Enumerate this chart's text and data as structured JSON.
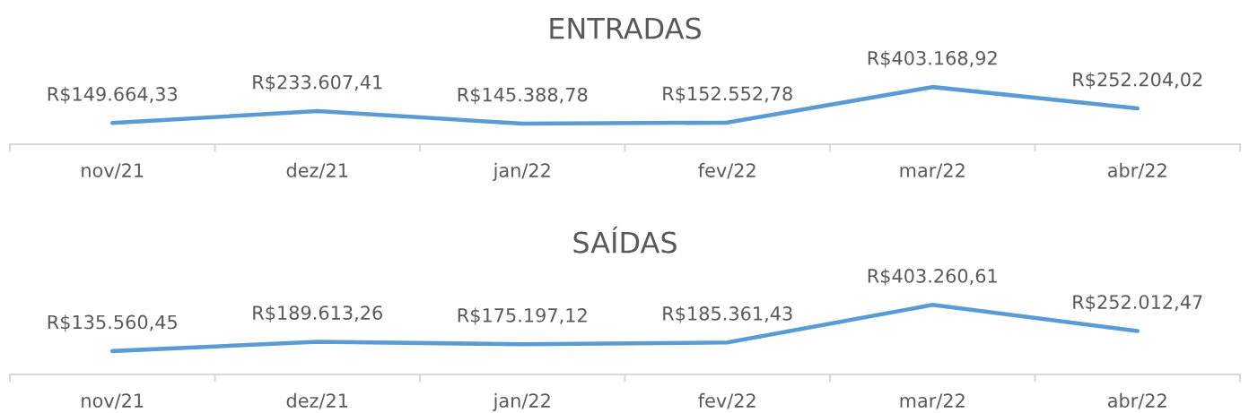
{
  "chart_data": [
    {
      "type": "line",
      "title": "ENTRADAS",
      "categories": [
        "nov/21",
        "dez/21",
        "jan/22",
        "fev/22",
        "mar/22",
        "abr/22"
      ],
      "tick_labels": "x",
      "marker": "none",
      "line_style": "solid",
      "series": [
        {
          "color": "#5b9bd5",
          "values": [
            149664.33,
            233607.41,
            145388.78,
            152552.78,
            403168.92,
            252204.02
          ],
          "value_labels": [
            "R$149.664,33",
            "R$233.607,41",
            "R$145.388,78",
            "R$152.552,78",
            "R$403.168,92",
            "R$252.204,02"
          ]
        }
      ]
    },
    {
      "type": "line",
      "title": "SAÍDAS",
      "categories": [
        "nov/21",
        "dez/21",
        "jan/22",
        "fev/22",
        "mar/22",
        "abr/22"
      ],
      "tick_labels": "x",
      "marker": "none",
      "line_style": "solid",
      "series": [
        {
          "color": "#5b9bd5",
          "values": [
            135560.45,
            189613.26,
            175197.12,
            185361.43,
            403260.61,
            252012.47
          ],
          "value_labels": [
            "R$135.560,45",
            "R$189.613,26",
            "R$175.197,12",
            "R$185.361,43",
            "R$403.260,61",
            "R$252.012,47"
          ]
        }
      ]
    }
  ]
}
